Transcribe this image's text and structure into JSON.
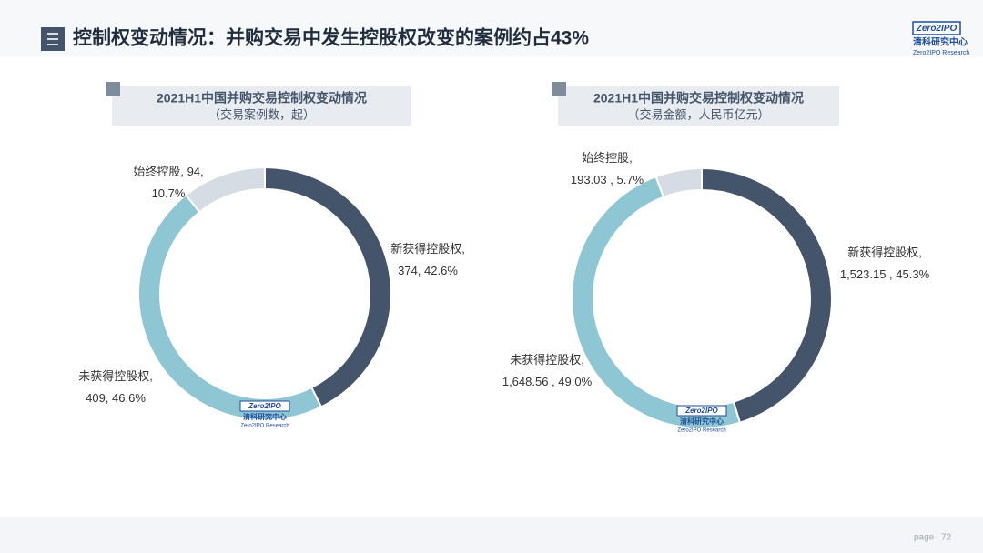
{
  "header": {
    "title": "控制权变动情况：并购交易中发生控股权改变的案例约占43%"
  },
  "logo": {
    "mark": "Zero2IPO",
    "name": "清科研究中心",
    "sub": "Zero2IPO Research"
  },
  "footer": {
    "page_label": "page",
    "page_number": 72
  },
  "chart_data": [
    {
      "type": "pie",
      "donut": true,
      "title": "2021H1中国并购交易控制权变动情况",
      "subtitle": "（交易案例数，起）",
      "categories": [
        "新获得控股权,",
        "未获得控股权,",
        "始终控股,"
      ],
      "values": [
        374,
        409,
        94
      ],
      "value_labels": [
        "374, 42.6%",
        "409, 46.6%",
        "94, 10.7%"
      ],
      "colors": [
        "#44546a",
        "#8fc6d3",
        "#d6dce4"
      ]
    },
    {
      "type": "pie",
      "donut": true,
      "title": "2021H1中国并购交易控制权变动情况",
      "subtitle": "（交易金额，人民币亿元）",
      "categories": [
        "新获得控股权,",
        "未获得控股权,",
        "始终控股,"
      ],
      "values": [
        1523.15,
        1648.56,
        193.03
      ],
      "value_labels": [
        "1,523.15 , 45.3%",
        "1,648.56 , 49.0%",
        "193.03 , 5.7%"
      ],
      "colors": [
        "#44546a",
        "#8fc6d3",
        "#d6dce4"
      ]
    }
  ]
}
